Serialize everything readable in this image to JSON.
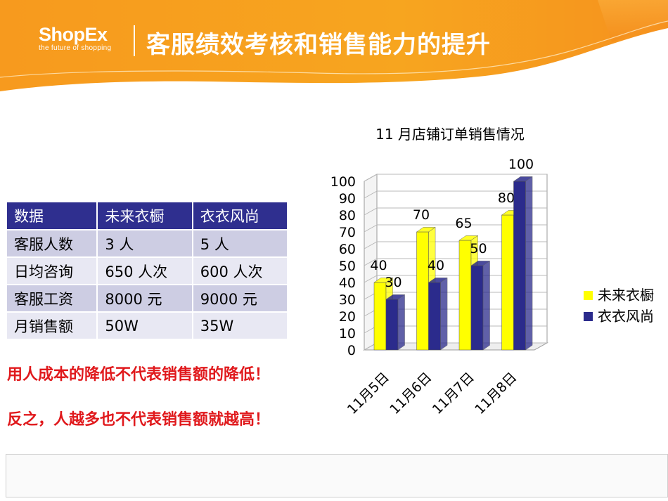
{
  "header": {
    "logo_text": "ShopEx",
    "logo_tagline": "the future of shopping",
    "title": "客服绩效考核和销售能力的提升"
  },
  "table": {
    "headers": [
      "数据",
      "未来衣橱",
      "衣衣风尚"
    ],
    "rows": [
      [
        "客服人数",
        "3 人",
        "5 人"
      ],
      [
        "日均咨询",
        "650 人次",
        "600 人次"
      ],
      [
        "客服工资",
        "8000 元",
        "9000 元"
      ],
      [
        "月销售额",
        "50W",
        "35W"
      ]
    ]
  },
  "notes": [
    "用人成本的降低不代表销售额的降低！",
    "反之，人越多也不代表销售额就越高！"
  ],
  "colors": {
    "header_orange": "#f6921e",
    "table_header": "#2f2f8f",
    "note_red": "#e0191c",
    "series1": "#ffff00",
    "series2": "#2b2b8c"
  },
  "chart_data": {
    "type": "bar",
    "title": "11 月店铺订单销售情况",
    "categories": [
      "11月5日",
      "11月6日",
      "11月7日",
      "11月8日"
    ],
    "series": [
      {
        "name": "未来衣橱",
        "values": [
          40,
          70,
          65,
          80
        ]
      },
      {
        "name": "衣衣风尚",
        "values": [
          30,
          40,
          50,
          100
        ]
      }
    ],
    "yticks": [
      "0",
      "10",
      "20",
      "30",
      "40",
      "50",
      "60",
      "70",
      "80",
      "90",
      "100"
    ],
    "ylim": [
      0,
      100
    ],
    "grid": true,
    "legend": "right",
    "style": "3d-column"
  }
}
